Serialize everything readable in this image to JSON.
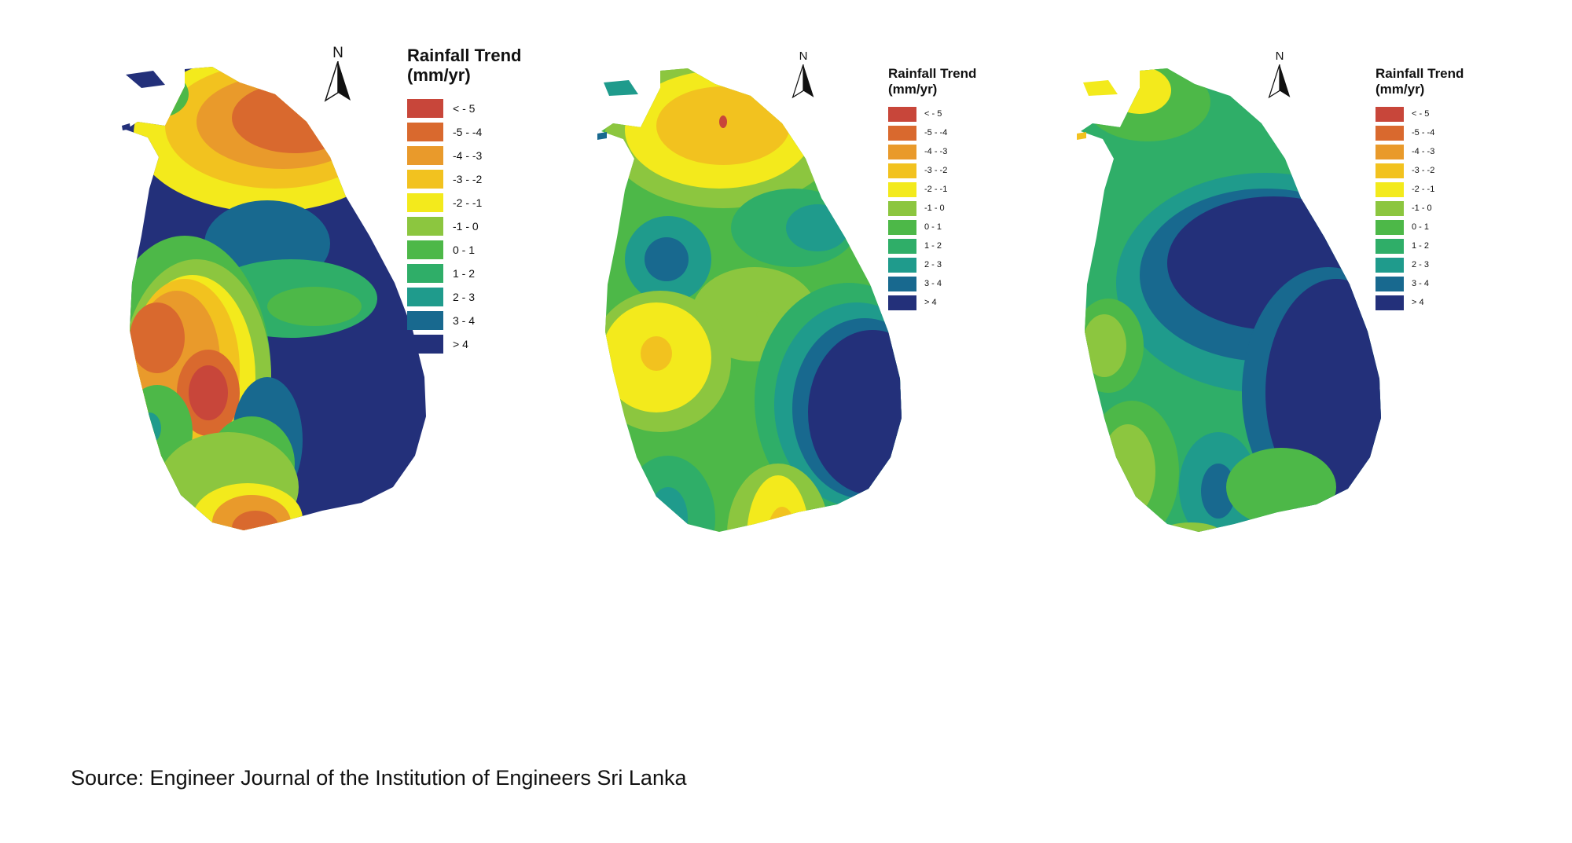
{
  "source": "Source: Engineer Journal of the Institution of Engineers Sri Lanka",
  "north_label": "N",
  "legend": {
    "title_line1": "Rainfall Trend",
    "title_line2": "(mm/yr)",
    "classes": [
      {
        "label": "< - 5",
        "color": "#c8463a"
      },
      {
        "label": "-5 - -4",
        "color": "#d9692e"
      },
      {
        "label": "-4 - -3",
        "color": "#e99a2b"
      },
      {
        "label": "-3 - -2",
        "color": "#f2c21f"
      },
      {
        "label": "-2 - -1",
        "color": "#f3ea1c"
      },
      {
        "label": "-1 - 0",
        "color": "#8cc63f"
      },
      {
        "label": "0 - 1",
        "color": "#4db848"
      },
      {
        "label": "1 - 2",
        "color": "#2fae68"
      },
      {
        "label": "2 - 3",
        "color": "#1f9b8c"
      },
      {
        "label": "3 - 4",
        "color": "#18698f"
      },
      {
        "label": "> 4",
        "color": "#23307a"
      }
    ]
  },
  "maps": [
    {
      "name": "map-1",
      "legend_labels": [
        "< - 5",
        "-5 - -4",
        "-4 - -3",
        "-3 - -2",
        "-2 - -1",
        "-1 - 0",
        "0 - 1",
        "1 - 2",
        "2 - 3",
        "3 - 4",
        "> 4"
      ]
    },
    {
      "name": "map-2",
      "legend_labels": [
        "< - 5",
        "-5 - -4",
        "-4 - -3",
        "-3 - -2",
        "-2 - -1",
        "-1 - 0",
        "0 - 1",
        "1 - 2",
        "2 - 3",
        "3 - 4",
        "> 4"
      ]
    },
    {
      "name": "map-3",
      "legend_labels": [
        "< - 5",
        "-5 - -4",
        "-4 - -3",
        "-3 - -2",
        "-2 - -1",
        "-1 - 0",
        "0 - 1",
        "1 - 2",
        "2 - 3",
        "3 - 4",
        "> 4"
      ]
    }
  ]
}
